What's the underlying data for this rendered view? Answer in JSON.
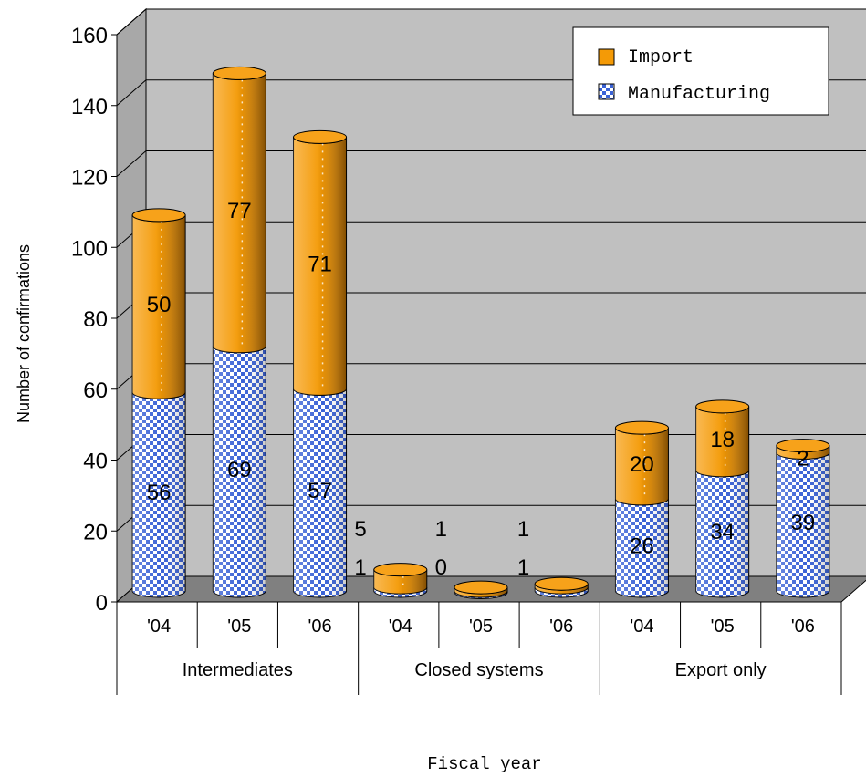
{
  "chart_data": {
    "type": "bar",
    "stacked": true,
    "style": "3d-cylinder",
    "title": "",
    "xlabel": "Fiscal year",
    "ylabel": "Number of confirmations",
    "ylim": [
      0,
      160
    ],
    "yticks": [
      0,
      20,
      40,
      60,
      80,
      100,
      120,
      140,
      160
    ],
    "groups": [
      {
        "label": "Intermediates",
        "categories": [
          "'04",
          "'05",
          "'06"
        ]
      },
      {
        "label": "Closed systems",
        "categories": [
          "'04",
          "'05",
          "'06"
        ]
      },
      {
        "label": "Export only",
        "categories": [
          "'04",
          "'05",
          "'06"
        ]
      }
    ],
    "series": [
      {
        "name": "Manufacturing",
        "color": "#3a62d6",
        "values": [
          56,
          69,
          57,
          1,
          0,
          1,
          26,
          34,
          39
        ]
      },
      {
        "name": "Import",
        "color": "#f49a06",
        "values": [
          50,
          77,
          71,
          5,
          1,
          1,
          20,
          18,
          2
        ]
      }
    ],
    "legend_position": "top-right",
    "grid": true,
    "wall_color": "#c0c0c0",
    "floor_color": "#808080"
  }
}
